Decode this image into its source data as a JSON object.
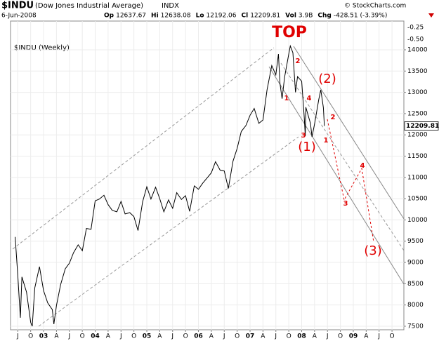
{
  "chart_data": {
    "type": "line",
    "header": {
      "symbol": "$INDU",
      "name": "(Dow Jones Industrial Average)",
      "exchange": "INDX",
      "date": "6-Jun-2008",
      "copyright": "© StockCharts.com",
      "stats": [
        {
          "label": "Op",
          "value": "12637.67"
        },
        {
          "label": "Hi",
          "value": "12638.08"
        },
        {
          "label": "Lo",
          "value": "12192.06"
        },
        {
          "label": "Cl",
          "value": "12209.81"
        },
        {
          "label": "Vol",
          "value": "3.9B"
        },
        {
          "label": "Chg",
          "value": "-428.51 (-3.39%)"
        }
      ]
    },
    "legend_label": "$INDU (Weekly)",
    "color": "#000000",
    "x": [
      2002.45,
      2002.5,
      2002.55,
      2002.58,
      2002.67,
      2002.75,
      2002.78,
      2002.83,
      2002.92,
      2003.0,
      2003.08,
      2003.17,
      2003.2,
      2003.25,
      2003.33,
      2003.42,
      2003.5,
      2003.58,
      2003.67,
      2003.75,
      2003.83,
      2003.92,
      2004.0,
      2004.08,
      2004.17,
      2004.25,
      2004.33,
      2004.42,
      2004.5,
      2004.58,
      2004.67,
      2004.75,
      2004.83,
      2004.92,
      2005.0,
      2005.08,
      2005.17,
      2005.25,
      2005.33,
      2005.42,
      2005.5,
      2005.58,
      2005.67,
      2005.75,
      2005.83,
      2005.92,
      2006.0,
      2006.08,
      2006.17,
      2006.25,
      2006.33,
      2006.42,
      2006.5,
      2006.58,
      2006.67,
      2006.75,
      2006.83,
      2006.92,
      2007.0,
      2007.08,
      2007.17,
      2007.25,
      2007.33,
      2007.42,
      2007.5,
      2007.55,
      2007.58,
      2007.62,
      2007.67,
      2007.75,
      2007.78,
      2007.83,
      2007.88,
      2007.92,
      2008.0,
      2008.05,
      2008.07,
      2008.08,
      2008.17,
      2008.2,
      2008.25,
      2008.33,
      2008.37,
      2008.42,
      2008.44
    ],
    "values": [
      9600,
      8700,
      7700,
      8660,
      8300,
      7590,
      7500,
      8400,
      8900,
      8340,
      8050,
      7890,
      7550,
      7990,
      8480,
      8850,
      8985,
      9230,
      9415,
      9275,
      9800,
      9780,
      10450,
      10490,
      10580,
      10360,
      10225,
      10190,
      10435,
      10140,
      10170,
      10080,
      9750,
      10430,
      10780,
      10490,
      10770,
      10500,
      10190,
      10470,
      10275,
      10640,
      10480,
      10570,
      10200,
      10800,
      10720,
      10860,
      10990,
      11110,
      11370,
      11170,
      11150,
      10740,
      11380,
      11680,
      12080,
      12220,
      12460,
      12620,
      12270,
      12350,
      13060,
      13630,
      13410,
      13900,
      13210,
      12850,
      13360,
      13900,
      14090,
      13930,
      13000,
      13370,
      13260,
      12400,
      11970,
      12650,
      12270,
      11950,
      12260,
      12820,
      13060,
      12640,
      12210
    ],
    "last_value": 12209.81,
    "xlim": [
      2002.36,
      2009.98
    ],
    "ylim": [
      7417,
      14676
    ],
    "yticks": [
      7500,
      8000,
      8500,
      9000,
      9500,
      10000,
      10500,
      11000,
      11500,
      12000,
      12500,
      13000,
      13500,
      14000
    ],
    "y_extra_labels": [
      "-0.50",
      "-0.25"
    ],
    "xticks": [
      {
        "value": 2002.5,
        "label": "J"
      },
      {
        "value": 2002.75,
        "label": "O"
      },
      {
        "value": 2003,
        "label": "03"
      },
      {
        "value": 2003.25,
        "label": "A"
      },
      {
        "value": 2003.5,
        "label": "J"
      },
      {
        "value": 2003.75,
        "label": "O"
      },
      {
        "value": 2004,
        "label": "04"
      },
      {
        "value": 2004.25,
        "label": "A"
      },
      {
        "value": 2004.5,
        "label": "J"
      },
      {
        "value": 2004.75,
        "label": "O"
      },
      {
        "value": 2005,
        "label": "05"
      },
      {
        "value": 2005.25,
        "label": "A"
      },
      {
        "value": 2005.5,
        "label": "J"
      },
      {
        "value": 2005.75,
        "label": "O"
      },
      {
        "value": 2006,
        "label": "06"
      },
      {
        "value": 2006.25,
        "label": "A"
      },
      {
        "value": 2006.5,
        "label": "J"
      },
      {
        "value": 2006.75,
        "label": "O"
      },
      {
        "value": 2007,
        "label": "07"
      },
      {
        "value": 2007.25,
        "label": "A"
      },
      {
        "value": 2007.5,
        "label": "J"
      },
      {
        "value": 2007.75,
        "label": "O"
      },
      {
        "value": 2008,
        "label": "08"
      },
      {
        "value": 2008.25,
        "label": "A"
      },
      {
        "value": 2008.5,
        "label": "J"
      },
      {
        "value": 2008.75,
        "label": "O"
      },
      {
        "value": 2009,
        "label": "09"
      },
      {
        "value": 2009.25,
        "label": "A"
      },
      {
        "value": 2009.5,
        "label": "J"
      },
      {
        "value": 2009.75,
        "label": "O"
      }
    ],
    "grid": true,
    "annotations": {
      "top": "TOP",
      "wave_major": [
        "(1)",
        "(2)",
        "(3)"
      ],
      "wave_minor": [
        "2",
        "1",
        "4",
        "3",
        "1",
        "2",
        "3",
        "4"
      ]
    }
  }
}
